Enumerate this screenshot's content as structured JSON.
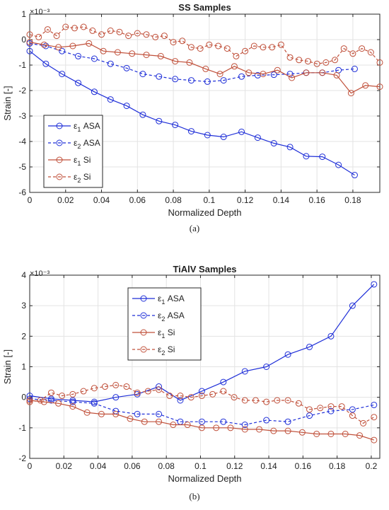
{
  "chart_data": [
    {
      "type": "line",
      "title": "SS Samples",
      "xlabel": "Normalized Depth",
      "ylabel": "Strain [-]",
      "exponent_label": "×10⁻³",
      "panel_label": "(a)",
      "xlim": [
        0,
        0.195
      ],
      "ylim": [
        -6,
        1
      ],
      "xticks": [
        "0",
        "0.02",
        "0.04",
        "0.06",
        "0.08",
        "0.1",
        "0.12",
        "0.14",
        "0.16",
        "0.18"
      ],
      "xtick_values": [
        0,
        0.02,
        0.04,
        0.06,
        0.08,
        0.1,
        0.12,
        0.14,
        0.16,
        0.18
      ],
      "yticks": [
        "1",
        "0",
        "-1",
        "-2",
        "-3",
        "-4",
        "-5",
        "-6"
      ],
      "ytick_values": [
        1,
        0,
        -1,
        -2,
        -3,
        -4,
        -5,
        -6
      ],
      "grid": true,
      "legend_position": "lower-left",
      "series": [
        {
          "name": "ε1 ASA",
          "sym": "ε",
          "sub": "1",
          "suffix": " ASA",
          "color": "#1f2fd8",
          "dash": "solid",
          "x": [
            0,
            0.009,
            0.018,
            0.027,
            0.036,
            0.045,
            0.054,
            0.063,
            0.072,
            0.081,
            0.09,
            0.099,
            0.108,
            0.118,
            0.127,
            0.136,
            0.145,
            0.154,
            0.163,
            0.172,
            0.181
          ],
          "y": [
            -0.45,
            -0.95,
            -1.35,
            -1.7,
            -2.05,
            -2.35,
            -2.6,
            -2.95,
            -3.2,
            -3.35,
            -3.6,
            -3.75,
            -3.82,
            -3.62,
            -3.85,
            -4.07,
            -4.22,
            -4.58,
            -4.6,
            -4.92,
            -5.32
          ]
        },
        {
          "name": "ε2 ASA",
          "sym": "ε",
          "sub": "2",
          "suffix": " ASA",
          "color": "#1f2fd8",
          "dash": "dashed",
          "x": [
            0,
            0.009,
            0.018,
            0.027,
            0.036,
            0.045,
            0.054,
            0.063,
            0.072,
            0.081,
            0.09,
            0.099,
            0.108,
            0.118,
            0.127,
            0.136,
            0.145,
            0.154,
            0.163,
            0.172,
            0.181
          ],
          "y": [
            -0.15,
            -0.25,
            -0.45,
            -0.65,
            -0.75,
            -0.95,
            -1.12,
            -1.35,
            -1.45,
            -1.55,
            -1.6,
            -1.65,
            -1.6,
            -1.45,
            -1.4,
            -1.38,
            -1.35,
            -1.3,
            -1.3,
            -1.2,
            -1.15
          ]
        },
        {
          "name": "ε1 Si",
          "sym": "ε",
          "sub": "1",
          "suffix": " Si",
          "color": "#c0503a",
          "dash": "solid",
          "x": [
            0,
            0.008,
            0.016,
            0.024,
            0.033,
            0.041,
            0.049,
            0.057,
            0.065,
            0.073,
            0.081,
            0.089,
            0.098,
            0.106,
            0.114,
            0.122,
            0.13,
            0.138,
            0.146,
            0.154,
            0.163,
            0.171,
            0.179,
            0.187,
            0.195
          ],
          "y": [
            -0.1,
            -0.2,
            -0.3,
            -0.25,
            -0.15,
            -0.45,
            -0.5,
            -0.55,
            -0.6,
            -0.65,
            -0.85,
            -0.9,
            -1.15,
            -1.35,
            -1.05,
            -1.3,
            -1.35,
            -1.2,
            -1.5,
            -1.3,
            -1.3,
            -1.4,
            -2.1,
            -1.8,
            -1.85
          ]
        },
        {
          "name": "ε2 Si",
          "sym": "ε",
          "sub": "2",
          "suffix": " Si",
          "color": "#c0503a",
          "dash": "dashed",
          "x": [
            0,
            0.005,
            0.01,
            0.015,
            0.02,
            0.025,
            0.03,
            0.035,
            0.04,
            0.045,
            0.05,
            0.055,
            0.06,
            0.065,
            0.07,
            0.075,
            0.08,
            0.085,
            0.09,
            0.095,
            0.1,
            0.105,
            0.11,
            0.115,
            0.12,
            0.125,
            0.13,
            0.135,
            0.14,
            0.145,
            0.15,
            0.155,
            0.16,
            0.165,
            0.17,
            0.175,
            0.18,
            0.185,
            0.19,
            0.195
          ],
          "y": [
            0.2,
            0.1,
            0.4,
            0.15,
            0.5,
            0.45,
            0.5,
            0.35,
            0.2,
            0.35,
            0.3,
            0.15,
            0.25,
            0.2,
            0.1,
            0.15,
            -0.1,
            -0.05,
            -0.3,
            -0.35,
            -0.2,
            -0.25,
            -0.35,
            -0.65,
            -0.45,
            -0.25,
            -0.3,
            -0.3,
            -0.2,
            -0.7,
            -0.8,
            -0.85,
            -0.95,
            -0.9,
            -0.8,
            -0.35,
            -0.55,
            -0.35,
            -0.5,
            -0.9
          ]
        }
      ]
    },
    {
      "type": "line",
      "title": "TiAlV Samples",
      "xlabel": "Normalized Depth",
      "ylabel": "Strain [-]",
      "exponent_label": "×10⁻³",
      "panel_label": "(b)",
      "xlim": [
        0,
        0.205
      ],
      "ylim": [
        -2,
        4
      ],
      "xticks": [
        "0",
        "0.02",
        "0.04",
        "0.06",
        "0.08",
        "0.1",
        "0.12",
        "0.14",
        "0.16",
        "0.18",
        "0.2"
      ],
      "xtick_values": [
        0,
        0.02,
        0.04,
        0.06,
        0.08,
        0.1,
        0.12,
        0.14,
        0.16,
        0.18,
        0.2
      ],
      "yticks": [
        "4",
        "3",
        "2",
        "1",
        "0",
        "-1",
        "-2"
      ],
      "ytick_values": [
        4,
        3,
        2,
        1,
        0,
        -1,
        -2
      ],
      "grid": true,
      "legend_position": "top-center",
      "series": [
        {
          "name": "ε1 ASA",
          "sym": "ε",
          "sub": "1",
          "suffix": " ASA",
          "color": "#1f2fd8",
          "dash": "solid",
          "x": [
            0,
            0.0126,
            0.0252,
            0.0378,
            0.0504,
            0.063,
            0.0756,
            0.0882,
            0.1008,
            0.1134,
            0.126,
            0.1386,
            0.1512,
            0.1638,
            0.1764,
            0.189,
            0.2016
          ],
          "y": [
            0.05,
            -0.05,
            -0.1,
            -0.15,
            0,
            0.1,
            0.35,
            -0.1,
            0.2,
            0.5,
            0.85,
            1.0,
            1.4,
            1.65,
            2.0,
            3.0,
            3.7
          ]
        },
        {
          "name": "ε2 ASA",
          "sym": "ε",
          "sub": "2",
          "suffix": " ASA",
          "color": "#1f2fd8",
          "dash": "dashed",
          "x": [
            0,
            0.0126,
            0.0252,
            0.0378,
            0.0504,
            0.063,
            0.0756,
            0.0882,
            0.1008,
            0.1134,
            0.126,
            0.1386,
            0.1512,
            0.1638,
            0.1764,
            0.189,
            0.2016
          ],
          "y": [
            -0.05,
            -0.1,
            -0.15,
            -0.2,
            -0.45,
            -0.55,
            -0.55,
            -0.8,
            -0.8,
            -0.8,
            -0.9,
            -0.75,
            -0.8,
            -0.6,
            -0.45,
            -0.4,
            -0.25
          ]
        },
        {
          "name": "ε1 Si",
          "sym": "ε",
          "sub": "1",
          "suffix": " Si",
          "color": "#c0503a",
          "dash": "solid",
          "x": [
            0,
            0.0084,
            0.0168,
            0.0252,
            0.0336,
            0.042,
            0.0504,
            0.0588,
            0.0672,
            0.0756,
            0.084,
            0.0924,
            0.1008,
            0.1092,
            0.1176,
            0.126,
            0.1344,
            0.1428,
            0.1512,
            0.1596,
            0.168,
            0.1764,
            0.1848,
            0.1932,
            0.2016
          ],
          "y": [
            -0.1,
            -0.15,
            -0.2,
            -0.3,
            -0.5,
            -0.55,
            -0.55,
            -0.7,
            -0.8,
            -0.8,
            -0.9,
            -0.9,
            -1.0,
            -1.0,
            -1.0,
            -1.05,
            -1.05,
            -1.1,
            -1.1,
            -1.15,
            -1.2,
            -1.2,
            -1.2,
            -1.25,
            -1.4
          ]
        },
        {
          "name": "ε2 Si",
          "sym": "ε",
          "sub": "2",
          "suffix": " Si",
          "color": "#c0503a",
          "dash": "dashed",
          "x": [
            0,
            0.0063,
            0.0126,
            0.0189,
            0.0252,
            0.0315,
            0.0378,
            0.0441,
            0.0504,
            0.0567,
            0.063,
            0.0693,
            0.0756,
            0.0819,
            0.0882,
            0.0945,
            0.1008,
            0.1071,
            0.1134,
            0.1197,
            0.126,
            0.1323,
            0.1386,
            0.1449,
            0.1512,
            0.1575,
            0.1638,
            0.1701,
            0.1764,
            0.1827,
            0.189,
            0.1953,
            0.2016
          ],
          "y": [
            -0.15,
            -0.1,
            0.15,
            0.05,
            0.1,
            0.2,
            0.3,
            0.35,
            0.4,
            0.35,
            0.15,
            0.2,
            0.25,
            0.05,
            0.05,
            0.0,
            0.05,
            0.1,
            0.2,
            0.0,
            -0.1,
            -0.1,
            -0.15,
            -0.1,
            -0.1,
            -0.2,
            -0.4,
            -0.35,
            -0.3,
            -0.3,
            -0.6,
            -0.85,
            -0.65
          ]
        }
      ]
    }
  ]
}
